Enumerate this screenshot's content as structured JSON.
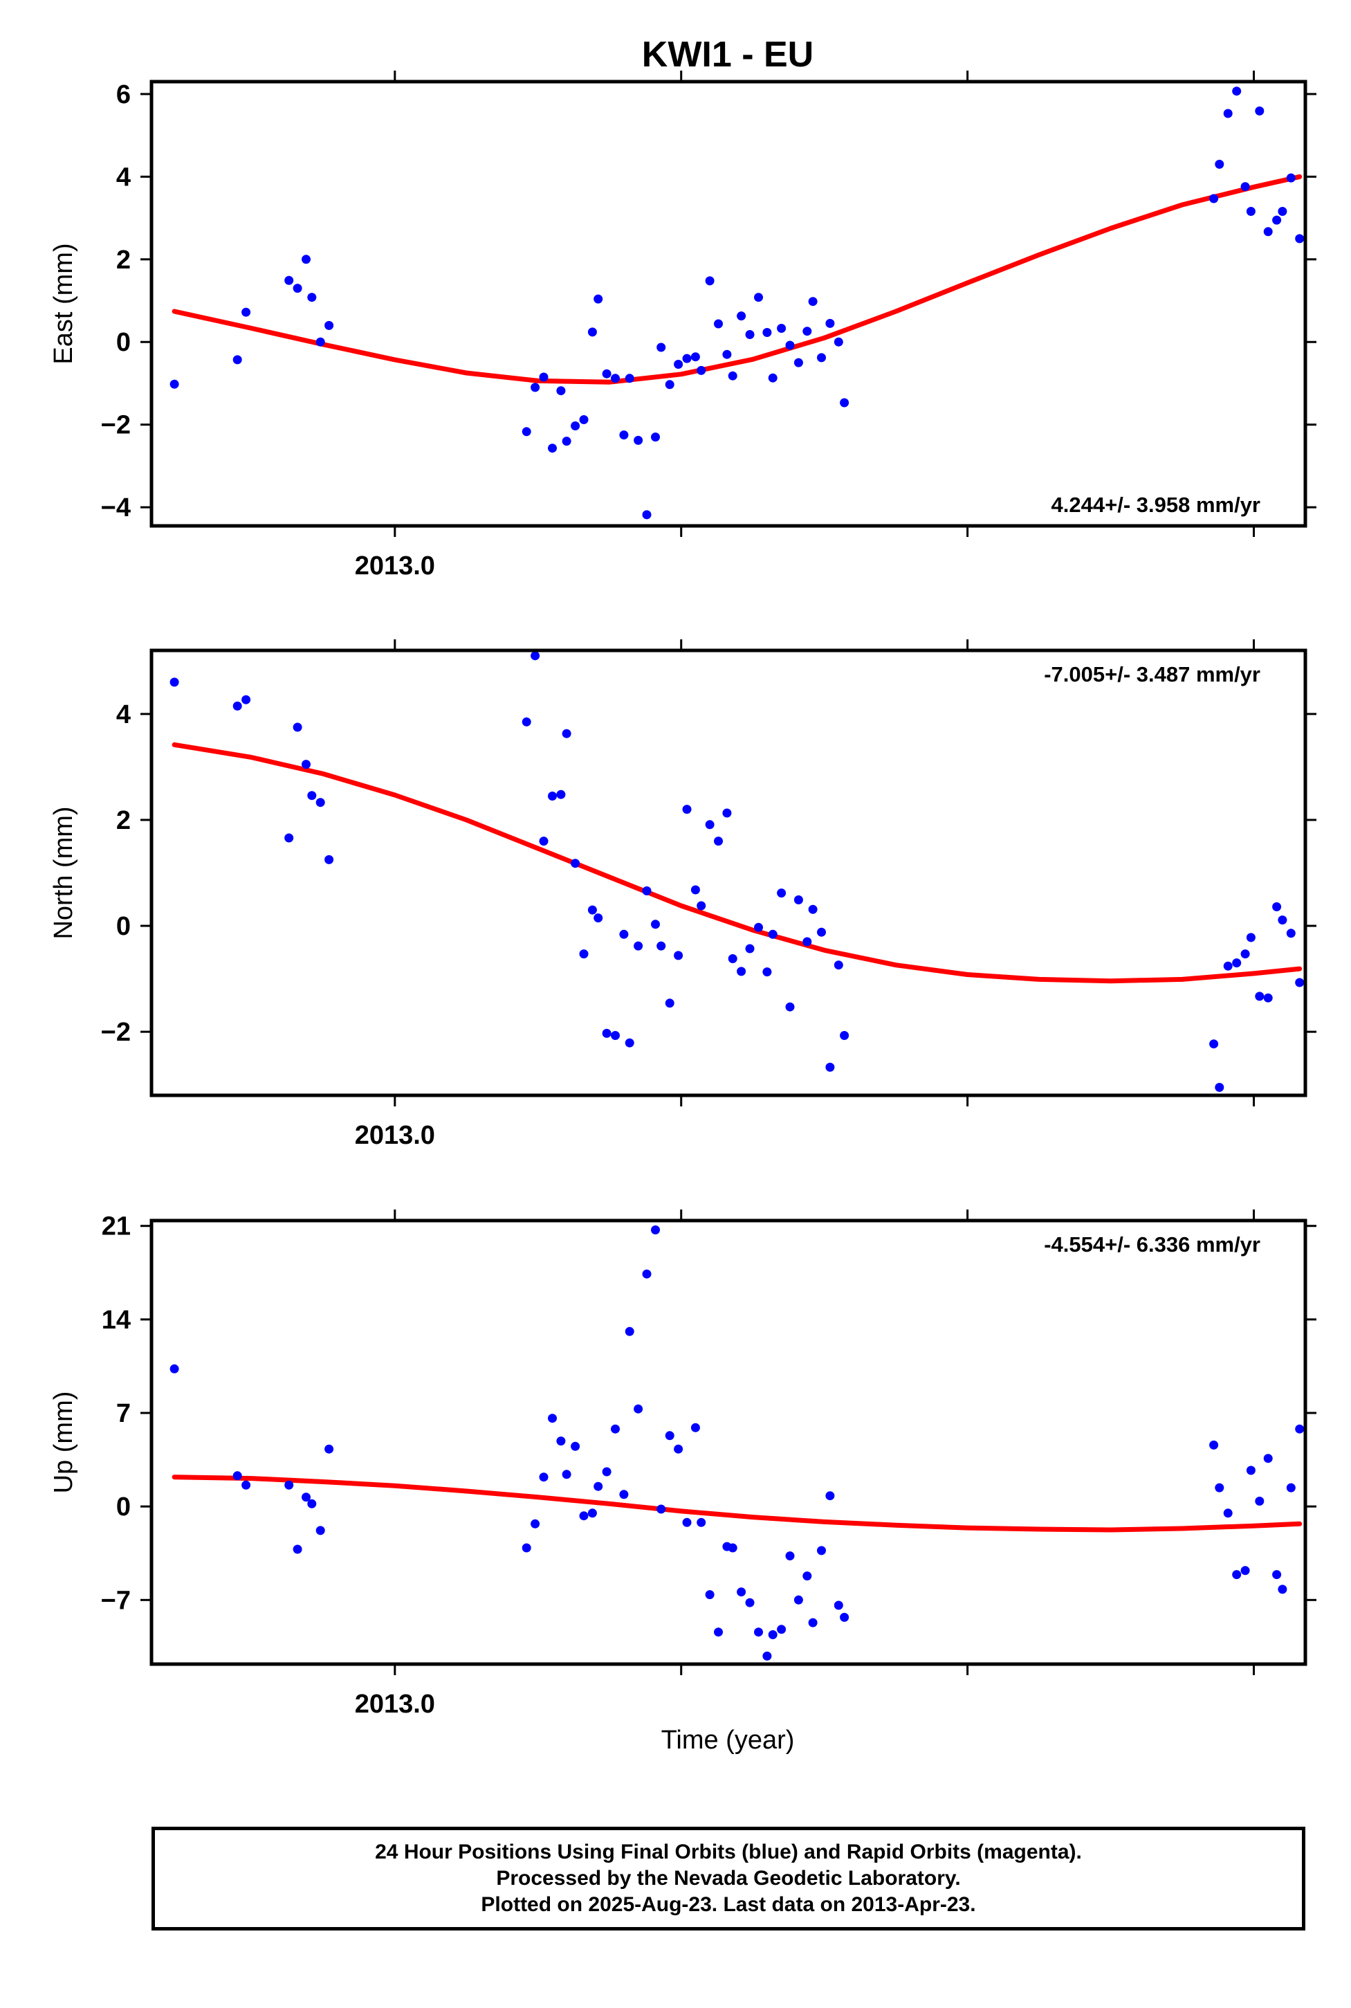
{
  "title": "KWI1 - EU",
  "xlabel": "Time (year)",
  "footer": {
    "line1": "24 Hour Positions Using Final Orbits (blue) and Rapid Orbits (magenta).",
    "line2": "Processed by the Nevada Geodetic Laboratory.",
    "line3": "Plotted on 2025-Aug-23. Last data on 2013-Apr-23."
  },
  "colors": {
    "points": "#0000ff",
    "fit": "#ff0000",
    "frame": "#000000"
  },
  "chart_data": [
    {
      "type": "scatter",
      "ylabel": "East (mm)",
      "rate": "4.244+/- 3.958 mm/yr",
      "xlim": [
        2012.915,
        2013.318
      ],
      "ylim": [
        -4.45,
        6.3
      ],
      "yticks": [
        -4,
        -2,
        0,
        2,
        4,
        6
      ],
      "yticklabels": [
        "−4",
        "−2",
        "0",
        "2",
        "4",
        "6"
      ],
      "xticks": [
        2013.0,
        2013.1,
        2013.2,
        2013.3
      ],
      "xticklabels": [
        "2013.0",
        "",
        "",
        ""
      ],
      "series": [
        {
          "values": [
            [
              2012.923,
              -1.02
            ],
            [
              2012.945,
              -0.43
            ],
            [
              2012.948,
              0.72
            ],
            [
              2012.963,
              1.49
            ],
            [
              2012.966,
              1.3
            ],
            [
              2012.969,
              2.0
            ],
            [
              2012.971,
              1.08
            ],
            [
              2012.974,
              0.0
            ],
            [
              2012.977,
              0.4
            ],
            [
              2013.046,
              -2.17
            ],
            [
              2013.049,
              -1.1
            ],
            [
              2013.052,
              -0.85
            ],
            [
              2013.055,
              -2.57
            ],
            [
              2013.058,
              -1.18
            ],
            [
              2013.06,
              -2.4
            ],
            [
              2013.063,
              -2.03
            ],
            [
              2013.066,
              -1.88
            ],
            [
              2013.069,
              0.24
            ],
            [
              2013.071,
              1.04
            ],
            [
              2013.074,
              -0.77
            ],
            [
              2013.077,
              -0.88
            ],
            [
              2013.08,
              -2.25
            ],
            [
              2013.082,
              -0.88
            ],
            [
              2013.085,
              -2.38
            ],
            [
              2013.088,
              -4.18
            ],
            [
              2013.091,
              -2.3
            ],
            [
              2013.093,
              -0.13
            ],
            [
              2013.096,
              -1.03
            ],
            [
              2013.099,
              -0.54
            ],
            [
              2013.102,
              -0.4
            ],
            [
              2013.105,
              -0.36
            ],
            [
              2013.107,
              -0.69
            ],
            [
              2013.11,
              1.48
            ],
            [
              2013.113,
              0.44
            ],
            [
              2013.116,
              -0.3
            ],
            [
              2013.118,
              -0.82
            ],
            [
              2013.121,
              0.63
            ],
            [
              2013.124,
              0.18
            ],
            [
              2013.127,
              1.08
            ],
            [
              2013.13,
              0.23
            ],
            [
              2013.132,
              -0.87
            ],
            [
              2013.135,
              0.33
            ],
            [
              2013.138,
              -0.08
            ],
            [
              2013.141,
              -0.5
            ],
            [
              2013.144,
              0.26
            ],
            [
              2013.146,
              0.98
            ],
            [
              2013.149,
              -0.38
            ],
            [
              2013.152,
              0.45
            ],
            [
              2013.155,
              0.0
            ],
            [
              2013.157,
              -1.47
            ],
            [
              2013.286,
              3.47
            ],
            [
              2013.288,
              4.3
            ],
            [
              2013.291,
              5.53
            ],
            [
              2013.294,
              6.07
            ],
            [
              2013.297,
              3.76
            ],
            [
              2013.299,
              3.16
            ],
            [
              2013.302,
              5.59
            ],
            [
              2013.305,
              2.67
            ],
            [
              2013.308,
              2.95
            ],
            [
              2013.31,
              3.16
            ],
            [
              2013.313,
              3.97
            ],
            [
              2013.316,
              2.5
            ]
          ]
        }
      ],
      "fit": [
        [
          2012.923,
          0.74
        ],
        [
          2012.95,
          0.33
        ],
        [
          2012.975,
          -0.06
        ],
        [
          2013.0,
          -0.43
        ],
        [
          2013.025,
          -0.75
        ],
        [
          2013.05,
          -0.94
        ],
        [
          2013.075,
          -0.97
        ],
        [
          2013.1,
          -0.78
        ],
        [
          2013.125,
          -0.42
        ],
        [
          2013.15,
          0.1
        ],
        [
          2013.175,
          0.74
        ],
        [
          2013.2,
          1.43
        ],
        [
          2013.225,
          2.11
        ],
        [
          2013.25,
          2.75
        ],
        [
          2013.275,
          3.32
        ],
        [
          2013.3,
          3.75
        ],
        [
          2013.316,
          4.0
        ]
      ]
    },
    {
      "type": "scatter",
      "ylabel": "North (mm)",
      "rate": "-7.005+/- 3.487 mm/yr",
      "xlim": [
        2012.915,
        2013.318
      ],
      "ylim": [
        -3.2,
        5.2
      ],
      "yticks": [
        -2,
        0,
        2,
        4
      ],
      "yticklabels": [
        "−2",
        "0",
        "2",
        "4"
      ],
      "xticks": [
        2013.0,
        2013.1,
        2013.2,
        2013.3
      ],
      "xticklabels": [
        "2013.0",
        "",
        "",
        ""
      ],
      "series": [
        {
          "values": [
            [
              2012.923,
              4.6
            ],
            [
              2012.945,
              4.15
            ],
            [
              2012.948,
              4.27
            ],
            [
              2012.963,
              1.66
            ],
            [
              2012.966,
              3.75
            ],
            [
              2012.969,
              3.05
            ],
            [
              2012.971,
              2.46
            ],
            [
              2012.974,
              2.33
            ],
            [
              2012.977,
              1.25
            ],
            [
              2013.046,
              3.85
            ],
            [
              2013.049,
              5.1
            ],
            [
              2013.052,
              1.6
            ],
            [
              2013.055,
              2.45
            ],
            [
              2013.058,
              2.48
            ],
            [
              2013.06,
              3.63
            ],
            [
              2013.063,
              1.18
            ],
            [
              2013.066,
              -0.53
            ],
            [
              2013.069,
              0.3
            ],
            [
              2013.071,
              0.15
            ],
            [
              2013.074,
              -2.03
            ],
            [
              2013.077,
              -2.07
            ],
            [
              2013.08,
              -0.16
            ],
            [
              2013.082,
              -2.21
            ],
            [
              2013.085,
              -0.38
            ],
            [
              2013.088,
              0.66
            ],
            [
              2013.091,
              0.03
            ],
            [
              2013.093,
              -0.38
            ],
            [
              2013.096,
              -1.46
            ],
            [
              2013.099,
              -0.56
            ],
            [
              2013.102,
              2.2
            ],
            [
              2013.105,
              0.68
            ],
            [
              2013.107,
              0.38
            ],
            [
              2013.11,
              1.91
            ],
            [
              2013.113,
              1.6
            ],
            [
              2013.116,
              2.13
            ],
            [
              2013.118,
              -0.62
            ],
            [
              2013.121,
              -0.86
            ],
            [
              2013.124,
              -0.43
            ],
            [
              2013.127,
              -0.03
            ],
            [
              2013.13,
              -0.87
            ],
            [
              2013.132,
              -0.16
            ],
            [
              2013.135,
              0.62
            ],
            [
              2013.138,
              -1.53
            ],
            [
              2013.141,
              0.49
            ],
            [
              2013.144,
              -0.3
            ],
            [
              2013.146,
              0.31
            ],
            [
              2013.149,
              -0.12
            ],
            [
              2013.152,
              -2.67
            ],
            [
              2013.155,
              -0.74
            ],
            [
              2013.157,
              -2.07
            ],
            [
              2013.286,
              -2.23
            ],
            [
              2013.288,
              -3.05
            ],
            [
              2013.291,
              -0.76
            ],
            [
              2013.294,
              -0.7
            ],
            [
              2013.297,
              -0.53
            ],
            [
              2013.299,
              -0.22
            ],
            [
              2013.302,
              -1.33
            ],
            [
              2013.305,
              -1.36
            ],
            [
              2013.308,
              0.36
            ],
            [
              2013.31,
              0.11
            ],
            [
              2013.313,
              -0.14
            ],
            [
              2013.316,
              -1.07
            ]
          ]
        }
      ],
      "fit": [
        [
          2012.923,
          3.42
        ],
        [
          2012.95,
          3.18
        ],
        [
          2012.975,
          2.87
        ],
        [
          2013.0,
          2.47
        ],
        [
          2013.025,
          2.0
        ],
        [
          2013.05,
          1.46
        ],
        [
          2013.075,
          0.92
        ],
        [
          2013.1,
          0.38
        ],
        [
          2013.125,
          -0.08
        ],
        [
          2013.15,
          -0.46
        ],
        [
          2013.175,
          -0.74
        ],
        [
          2013.2,
          -0.92
        ],
        [
          2013.225,
          -1.01
        ],
        [
          2013.25,
          -1.04
        ],
        [
          2013.275,
          -1.01
        ],
        [
          2013.3,
          -0.9
        ],
        [
          2013.316,
          -0.81
        ]
      ]
    },
    {
      "type": "scatter",
      "ylabel": "Up (mm)",
      "rate": "-4.554+/- 6.336 mm/yr",
      "xlim": [
        2012.915,
        2013.318
      ],
      "ylim": [
        -11.8,
        21.4
      ],
      "yticks": [
        -7,
        0,
        7,
        14,
        21
      ],
      "yticklabels": [
        "−7",
        "0",
        "7",
        "14",
        "21"
      ],
      "xticks": [
        2013.0,
        2013.1,
        2013.2,
        2013.3
      ],
      "xticklabels": [
        "2013.0",
        "",
        "",
        ""
      ],
      "series": [
        {
          "values": [
            [
              2012.923,
              10.3
            ],
            [
              2012.945,
              2.3
            ],
            [
              2012.948,
              1.6
            ],
            [
              2012.963,
              1.6
            ],
            [
              2012.966,
              -3.2
            ],
            [
              2012.969,
              0.7
            ],
            [
              2012.971,
              0.2
            ],
            [
              2012.974,
              -1.8
            ],
            [
              2012.977,
              4.3
            ],
            [
              2013.046,
              -3.1
            ],
            [
              2013.049,
              -1.3
            ],
            [
              2013.052,
              2.2
            ],
            [
              2013.055,
              6.6
            ],
            [
              2013.058,
              4.9
            ],
            [
              2013.06,
              2.4
            ],
            [
              2013.063,
              4.5
            ],
            [
              2013.066,
              -0.7
            ],
            [
              2013.069,
              -0.5
            ],
            [
              2013.071,
              1.5
            ],
            [
              2013.074,
              2.6
            ],
            [
              2013.077,
              5.8
            ],
            [
              2013.08,
              0.9
            ],
            [
              2013.082,
              13.1
            ],
            [
              2013.085,
              7.3
            ],
            [
              2013.088,
              17.4
            ],
            [
              2013.091,
              20.7
            ],
            [
              2013.093,
              -0.2
            ],
            [
              2013.096,
              5.3
            ],
            [
              2013.099,
              4.3
            ],
            [
              2013.102,
              -1.2
            ],
            [
              2013.105,
              5.9
            ],
            [
              2013.107,
              -1.2
            ],
            [
              2013.11,
              -6.6
            ],
            [
              2013.113,
              -9.4
            ],
            [
              2013.116,
              -3.0
            ],
            [
              2013.118,
              -3.1
            ],
            [
              2013.121,
              -6.4
            ],
            [
              2013.124,
              -7.2
            ],
            [
              2013.127,
              -9.4
            ],
            [
              2013.13,
              -11.2
            ],
            [
              2013.132,
              -9.6
            ],
            [
              2013.135,
              -9.2
            ],
            [
              2013.138,
              -3.7
            ],
            [
              2013.141,
              -7.0
            ],
            [
              2013.144,
              -5.2
            ],
            [
              2013.146,
              -8.7
            ],
            [
              2013.149,
              -3.3
            ],
            [
              2013.152,
              0.8
            ],
            [
              2013.155,
              -7.4
            ],
            [
              2013.157,
              -8.3
            ],
            [
              2013.286,
              4.6
            ],
            [
              2013.288,
              1.4
            ],
            [
              2013.291,
              -0.5
            ],
            [
              2013.294,
              -5.1
            ],
            [
              2013.297,
              -4.8
            ],
            [
              2013.299,
              2.7
            ],
            [
              2013.302,
              0.4
            ],
            [
              2013.305,
              3.6
            ],
            [
              2013.308,
              -5.1
            ],
            [
              2013.31,
              -6.2
            ],
            [
              2013.313,
              1.4
            ],
            [
              2013.316,
              5.8
            ]
          ]
        }
      ],
      "fit": [
        [
          2012.923,
          2.2
        ],
        [
          2012.95,
          2.1
        ],
        [
          2012.975,
          1.85
        ],
        [
          2013.0,
          1.55
        ],
        [
          2013.025,
          1.15
        ],
        [
          2013.05,
          0.7
        ],
        [
          2013.075,
          0.2
        ],
        [
          2013.1,
          -0.35
        ],
        [
          2013.125,
          -0.8
        ],
        [
          2013.15,
          -1.15
        ],
        [
          2013.175,
          -1.4
        ],
        [
          2013.2,
          -1.6
        ],
        [
          2013.225,
          -1.7
        ],
        [
          2013.25,
          -1.75
        ],
        [
          2013.275,
          -1.65
        ],
        [
          2013.3,
          -1.45
        ],
        [
          2013.316,
          -1.3
        ]
      ]
    }
  ]
}
